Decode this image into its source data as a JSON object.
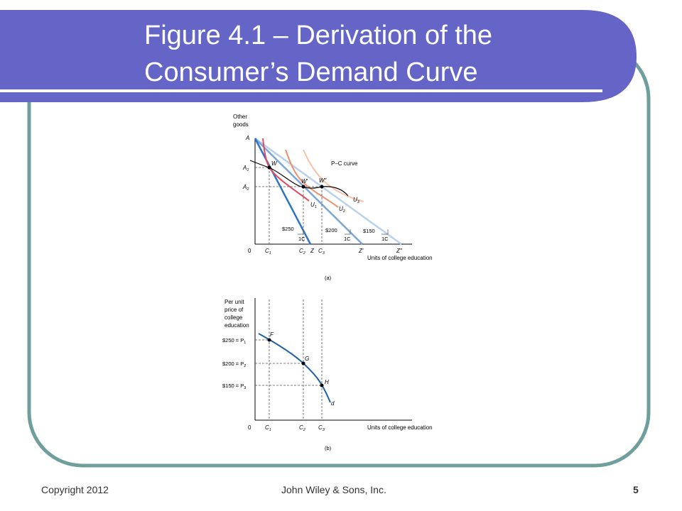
{
  "slide": {
    "title_line1": "Figure 4.1 – Derivation of the",
    "title_line2": "Consumer’s Demand Curve",
    "footer": {
      "copyright": "Copyright 2012",
      "publisher": "John Wiley & Sons, Inc.",
      "slide_number": "5"
    },
    "colors": {
      "title_bar": "#6465C7",
      "frame_border": "#6E9F9C",
      "u1": "#E54A5E",
      "u2": "#EE8F6C",
      "u3": "#F6C3A8",
      "budget_dark": "#2F74C5",
      "budget_mid": "#7AA6D9",
      "budget_light": "#B9D1EC",
      "demand": "#1E63A8"
    }
  },
  "panel_a": {
    "y_axis_title_1": "Other",
    "y_axis_title_2": "goods",
    "origin": "0",
    "x_axis_title": "Units of college education",
    "caption": "(a)",
    "y_ticks": {
      "A": "A",
      "A1": "A",
      "A1_sub": "1",
      "A2": "A",
      "A2_sub": "2"
    },
    "x_ticks": {
      "C1": "C",
      "C1_sub": "1",
      "C2": "C",
      "C2_sub": "2",
      "Z": "Z",
      "C3": "C",
      "C3_sub": "3",
      "Z1": "Z′",
      "Z2": "Z″"
    },
    "points": {
      "W": "W",
      "W1": "W′",
      "W2": "W″"
    },
    "pc_curve": "P–C curve",
    "curves": {
      "U1": "U",
      "U1_sub": "1",
      "U2": "U",
      "U2_sub": "2",
      "U3": "U",
      "U3_sub": "3"
    },
    "price_labels": {
      "p250": "$250",
      "p200": "$200",
      "p150": "$150",
      "unit": "1C"
    }
  },
  "panel_b": {
    "y_axis_title": [
      "Per unit",
      "price of",
      "college",
      "education"
    ],
    "origin": "0",
    "x_axis_title": "Units of college education",
    "caption": "(b)",
    "y_ticks": {
      "P1_pre": "$250 = P",
      "P1_sub": "1",
      "P2_pre": "$200 = P",
      "P2_sub": "2",
      "P3_pre": "$150 = P",
      "P3_sub": "3"
    },
    "x_ticks": {
      "C1": "C",
      "C1_sub": "1",
      "C2": "C",
      "C2_sub": "2",
      "C3": "C",
      "C3_sub": "3"
    },
    "points": {
      "F": "F",
      "G": "G",
      "H": "H"
    },
    "curve": "d"
  }
}
